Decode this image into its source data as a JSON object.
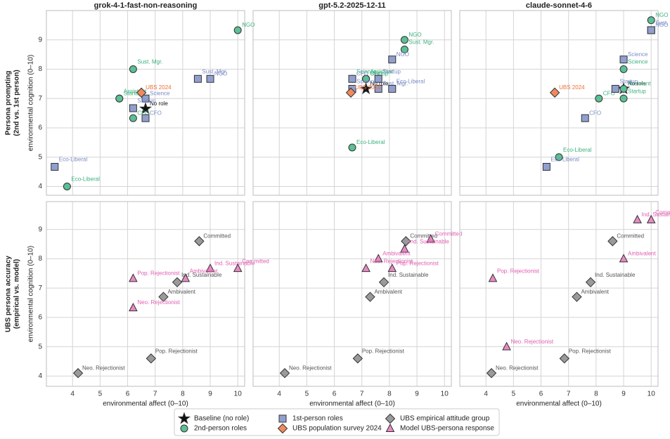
{
  "row_labels": [
    [
      "Persona prompting",
      "(2nd vs. 1st person)"
    ],
    [
      "UBS persona accuracy",
      "(empirical vs. model)"
    ]
  ],
  "chart_data": [
    {
      "type": "scatter",
      "title": "grok-4-1-fast-non-reasoning",
      "ylabel": "environmental cognition (0–10)",
      "xlim": [
        3.05,
        10.25
      ],
      "ylim": [
        3.7,
        10.0
      ],
      "xticks": [
        4,
        5,
        6,
        7,
        8,
        9,
        10
      ],
      "yticks": [
        4,
        5,
        6,
        7,
        8,
        9
      ],
      "grid": true,
      "series": [
        {
          "name": "Baseline (no role)",
          "color": "#111111",
          "label_color": "#111111",
          "marker": "star",
          "x": [
            6.65
          ],
          "values": [
            6.65
          ],
          "point_labels": [
            "No role"
          ]
        },
        {
          "name": "2nd-person roles",
          "color": "#5cbf96",
          "label_color": "#3fb17f",
          "marker": "circle",
          "x": [
            10.0,
            6.2,
            5.7,
            5.7,
            6.2,
            3.8
          ],
          "values": [
            9.33,
            8.0,
            7.0,
            7.0,
            6.33,
            4.0
          ],
          "point_labels": [
            "NGO",
            "Sust. Mgr.",
            "Startup",
            "Assistant",
            "CFO",
            "Eco-Liberal"
          ]
        },
        {
          "name": "1st-person roles",
          "color": "#919fcf",
          "label_color": "#7c8cc6",
          "marker": "square",
          "x": [
            9.0,
            8.55,
            6.65,
            6.2,
            6.65,
            3.35
          ],
          "values": [
            7.67,
            7.67,
            7.0,
            6.67,
            6.33,
            4.67
          ],
          "point_labels": [
            "NGO",
            "Sust. Mgr.",
            "Science",
            "Startup",
            "CFO",
            "Eco-Liberal"
          ]
        },
        {
          "name": "UBS population survey 2024",
          "color": "#f08a5d",
          "label_color": "#ef6f35",
          "marker": "diamond",
          "x": [
            6.5
          ],
          "values": [
            7.2
          ],
          "point_labels": [
            "UBS 2024"
          ]
        }
      ]
    },
    {
      "type": "scatter",
      "title": "gpt-5.2-2025-12-11",
      "xlim": [
        3.05,
        10.25
      ],
      "ylim": [
        3.7,
        10.0
      ],
      "xticks": [
        4,
        5,
        6,
        7,
        8,
        9,
        10
      ],
      "yticks": [
        4,
        5,
        6,
        7,
        8,
        9
      ],
      "grid": true,
      "series": [
        {
          "color": "#111111",
          "label_color": "#111111",
          "marker": "star",
          "x": [
            7.15
          ],
          "values": [
            7.33
          ],
          "point_labels": [
            "No role"
          ]
        },
        {
          "color": "#5cbf96",
          "label_color": "#3fb17f",
          "marker": "circle",
          "x": [
            8.55,
            8.55,
            7.15,
            7.15,
            7.15,
            6.65,
            6.65
          ],
          "values": [
            9.0,
            8.67,
            7.67,
            7.67,
            7.67,
            7.67,
            5.33
          ],
          "point_labels": [
            "NGO",
            "Sust. Mgr.",
            "Startup",
            "Assistant",
            "CFO",
            "Science",
            "Eco-Liberal"
          ]
        },
        {
          "color": "#919fcf",
          "label_color": "#7c8cc6",
          "marker": "square",
          "x": [
            8.1,
            7.6,
            6.65,
            6.65,
            7.6,
            8.1
          ],
          "values": [
            8.33,
            7.67,
            7.67,
            7.33,
            7.33,
            7.33
          ],
          "point_labels": [
            "NGO",
            "Startup",
            "CFO",
            "Science",
            "Sust. Mgr.",
            "Eco-Liberal"
          ]
        },
        {
          "color": "#f08a5d",
          "label_color": "#ef6f35",
          "marker": "diamond",
          "x": [
            6.6
          ],
          "values": [
            7.2
          ],
          "point_labels": [
            "UBS 2024"
          ]
        }
      ]
    },
    {
      "type": "scatter",
      "title": "claude-sonnet-4-6",
      "xlim": [
        3.05,
        10.25
      ],
      "ylim": [
        3.7,
        10.0
      ],
      "xticks": [
        4,
        5,
        6,
        7,
        8,
        9,
        10
      ],
      "yticks": [
        4,
        5,
        6,
        7,
        8,
        9
      ],
      "grid": true,
      "series": [
        {
          "color": "#111111",
          "label_color": "#111111",
          "marker": "star",
          "x": [
            9.0
          ],
          "values": [
            7.33
          ],
          "point_labels": [
            "No role"
          ]
        },
        {
          "color": "#5cbf96",
          "label_color": "#3fb17f",
          "marker": "circle",
          "x": [
            10.0,
            9.0,
            9.0,
            9.0,
            8.1,
            6.65
          ],
          "values": [
            9.67,
            8.0,
            7.33,
            7.0,
            7.0,
            5.0
          ],
          "point_labels": [
            "NGO",
            "Science",
            "Assistant",
            "Startup",
            "CFO",
            "Eco-Liberal"
          ]
        },
        {
          "color": "#919fcf",
          "label_color": "#7c8cc6",
          "marker": "square",
          "x": [
            10.0,
            10.0,
            9.0,
            8.7,
            7.6,
            6.2
          ],
          "values": [
            9.33,
            9.33,
            8.33,
            7.33,
            6.33,
            4.67
          ],
          "point_labels": [
            "NGO",
            "Sust. Mgr.",
            "Science",
            "Startup",
            "CFO",
            "Eco-Liberal"
          ]
        },
        {
          "color": "#f08a5d",
          "label_color": "#ef6f35",
          "marker": "diamond",
          "x": [
            6.5
          ],
          "values": [
            7.2
          ],
          "point_labels": [
            "UBS 2024"
          ]
        }
      ]
    },
    {
      "type": "scatter",
      "xlabel": "environmental affect (0–10)",
      "ylabel": "environmental cognition (0–10)",
      "xlim": [
        3.05,
        10.25
      ],
      "ylim": [
        3.65,
        9.95
      ],
      "xticks": [
        4,
        5,
        6,
        7,
        8,
        9,
        10
      ],
      "yticks": [
        4,
        5,
        6,
        7,
        8,
        9
      ],
      "grid": true,
      "series": [
        {
          "name": "UBS empirical attitude group",
          "color": "#9a9a9a",
          "label_color": "#555555",
          "marker": "diamond",
          "x": [
            8.6,
            7.8,
            7.3,
            6.85,
            4.2
          ],
          "values": [
            8.6,
            7.2,
            6.7,
            4.6,
            4.1
          ],
          "point_labels": [
            "Committed",
            "Ind. Sustainable",
            "Ambivalent",
            "Pop. Rejectionist",
            "Neo. Rejectionist"
          ]
        },
        {
          "name": "Model UBS-persona response",
          "color": "#e88ac4",
          "label_color": "#e060b2",
          "marker": "triangle",
          "x": [
            9.0,
            10.0,
            6.2,
            8.1,
            6.2
          ],
          "values": [
            7.67,
            7.67,
            7.33,
            7.33,
            6.33
          ],
          "point_labels": [
            "Ind. Sustainable",
            "Committed",
            "Pop. Rejectionist",
            "Ambivalent",
            "Neo. Rejectionist"
          ]
        }
      ]
    },
    {
      "type": "scatter",
      "xlabel": "environmental affect (0–10)",
      "xlim": [
        3.05,
        10.25
      ],
      "ylim": [
        3.65,
        9.95
      ],
      "xticks": [
        4,
        5,
        6,
        7,
        8,
        9,
        10
      ],
      "yticks": [
        4,
        5,
        6,
        7,
        8,
        9
      ],
      "grid": true,
      "series": [
        {
          "color": "#9a9a9a",
          "label_color": "#555555",
          "marker": "diamond",
          "x": [
            8.6,
            7.8,
            7.3,
            6.85,
            4.2
          ],
          "values": [
            8.6,
            7.2,
            6.7,
            4.6,
            4.1
          ],
          "point_labels": [
            "Committed",
            "Ind. Sustainable",
            "Ambivalent",
            "Pop. Rejectionist",
            "Neo. Rejectionist"
          ]
        },
        {
          "color": "#e88ac4",
          "label_color": "#e060b2",
          "marker": "triangle",
          "x": [
            9.5,
            8.55,
            7.6,
            7.15,
            8.1
          ],
          "values": [
            8.67,
            8.33,
            8.0,
            7.67,
            7.67
          ],
          "point_labels": [
            "Committed",
            "Ind. Sustainable",
            "Ambivalent",
            "Neo. Rejectionist",
            "Pop. Rejectionist"
          ]
        }
      ]
    },
    {
      "type": "scatter",
      "xlabel": "environmental affect (0–10)",
      "xlim": [
        3.05,
        10.25
      ],
      "ylim": [
        3.65,
        9.95
      ],
      "xticks": [
        4,
        5,
        6,
        7,
        8,
        9,
        10
      ],
      "yticks": [
        4,
        5,
        6,
        7,
        8,
        9
      ],
      "grid": true,
      "series": [
        {
          "color": "#9a9a9a",
          "label_color": "#555555",
          "marker": "diamond",
          "x": [
            8.6,
            7.8,
            7.3,
            6.85,
            4.2
          ],
          "values": [
            8.6,
            7.2,
            6.7,
            4.6,
            4.1
          ],
          "point_labels": [
            "Committed",
            "Ind. Sustainable",
            "Ambivalent",
            "Pop. Rejectionist",
            "Neo. Rejectionist"
          ]
        },
        {
          "color": "#e88ac4",
          "label_color": "#e060b2",
          "marker": "triangle",
          "x": [
            9.5,
            10.0,
            9.0,
            4.25,
            4.75
          ],
          "values": [
            9.33,
            9.33,
            8.0,
            7.33,
            5.0
          ],
          "point_labels": [
            "Ind. Sustainable",
            "Committed",
            "Ambivalent",
            "Pop. Rejectionist",
            "Neo. Rejectionist"
          ]
        }
      ]
    }
  ]
}
